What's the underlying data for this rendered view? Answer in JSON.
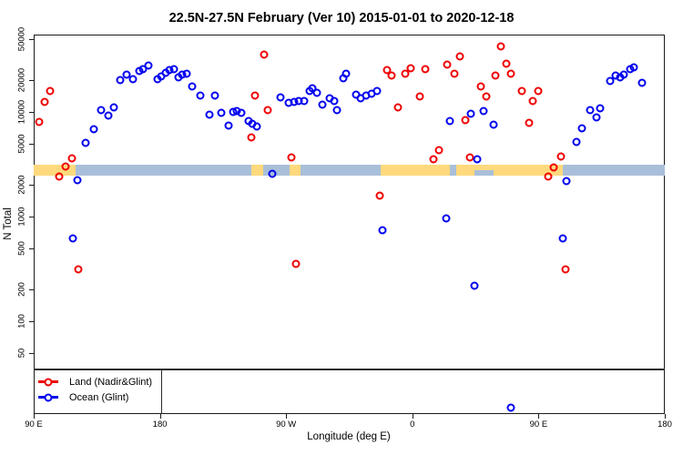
{
  "title": "22.5N-27.5N February (Ver 10)   2015-01-01 to 2020-12-18",
  "axes": {
    "x_label": "Longitude (deg E)",
    "y_label": "N Total",
    "x_range": [
      90,
      540
    ],
    "x_ticks": [
      {
        "value": 90,
        "label": "90 E"
      },
      {
        "value": 180,
        "label": "180"
      },
      {
        "value": 270,
        "label": "90 W"
      },
      {
        "value": 360,
        "label": "0"
      },
      {
        "value": 450,
        "label": "90 E"
      },
      {
        "value": 540,
        "label": "180"
      }
    ],
    "y_ticks": [
      50,
      100,
      200,
      500,
      1000,
      2000,
      5000,
      10000,
      20000,
      50000
    ],
    "y_scale": "log"
  },
  "legend": [
    {
      "label": "Land (Nadir&Glint)",
      "color": "#ee0000"
    },
    {
      "label": "Ocean (Glint)",
      "color": "#0000ee"
    }
  ],
  "map_band": {
    "ocean_color": "#a9bfd9",
    "land_color": "#ffd97c",
    "n_range": [
      2460,
      3100
    ],
    "land_segments_lon": [
      [
        90,
        120
      ],
      [
        245,
        253.5
      ],
      [
        272.5,
        280.5
      ],
      [
        337.5,
        386.5
      ],
      [
        391,
        467
      ]
    ],
    "ocean_patches_lower_lon": [
      [
        404,
        418
      ]
    ]
  },
  "threshold_line_n": 35,
  "chart_data": {
    "type": "scatter",
    "xlabel": "Longitude (deg E)",
    "ylabel": "N Total",
    "x_range": [
      90,
      540
    ],
    "y_range_log": [
      13,
      60000
    ],
    "grid": false,
    "legend_position": "bottom-left",
    "series": [
      {
        "name": "Land (Nadir&Glint)",
        "color": "#ee0000",
        "points": [
          [
            94,
            8000
          ],
          [
            98,
            12500
          ],
          [
            102,
            16000
          ],
          [
            108,
            2400
          ],
          [
            113,
            3000
          ],
          [
            117,
            3600
          ],
          [
            122,
            310
          ],
          [
            245,
            5700
          ],
          [
            248,
            14300
          ],
          [
            254,
            35000
          ],
          [
            257,
            10400
          ],
          [
            274,
            3700
          ],
          [
            277,
            355
          ],
          [
            337,
            1600
          ],
          [
            342,
            25000
          ],
          [
            345,
            22300
          ],
          [
            350,
            11000
          ],
          [
            355,
            23000
          ],
          [
            359,
            26000
          ],
          [
            365,
            14000
          ],
          [
            369,
            25500
          ],
          [
            375,
            3550
          ],
          [
            379,
            4340
          ],
          [
            385,
            28500
          ],
          [
            390,
            23000
          ],
          [
            394,
            34000
          ],
          [
            398,
            8300
          ],
          [
            401,
            3700
          ],
          [
            409,
            17400
          ],
          [
            413,
            14000
          ],
          [
            419,
            22400
          ],
          [
            423,
            42000
          ],
          [
            427,
            29000
          ],
          [
            430,
            23000
          ],
          [
            438,
            15700
          ],
          [
            443,
            7900
          ],
          [
            446,
            12800
          ],
          [
            450,
            15700
          ],
          [
            457,
            2430
          ],
          [
            461,
            2970
          ],
          [
            466,
            3740
          ],
          [
            469,
            310
          ]
        ]
      },
      {
        "name": "Ocean (Glint)",
        "color": "#0000ee",
        "points": [
          [
            118,
            615
          ],
          [
            121,
            2230
          ],
          [
            127,
            5100
          ],
          [
            133,
            6900
          ],
          [
            138,
            10350
          ],
          [
            143,
            9200
          ],
          [
            147,
            11000
          ],
          [
            152,
            20100
          ],
          [
            156,
            22900
          ],
          [
            161,
            20700
          ],
          [
            165,
            24600
          ],
          [
            168,
            25800
          ],
          [
            172,
            27600
          ],
          [
            178,
            20400
          ],
          [
            181,
            22000
          ],
          [
            184,
            23800
          ],
          [
            187,
            25000
          ],
          [
            190,
            25500
          ],
          [
            193,
            21500
          ],
          [
            196,
            22700
          ],
          [
            199,
            23300
          ],
          [
            203,
            17600
          ],
          [
            209,
            14400
          ],
          [
            215,
            9400
          ],
          [
            219,
            14400
          ],
          [
            224,
            9800
          ],
          [
            229,
            7400
          ],
          [
            232,
            10000
          ],
          [
            235,
            10200
          ],
          [
            238,
            9800
          ],
          [
            243,
            8200
          ],
          [
            246,
            7700
          ],
          [
            249,
            7300
          ],
          [
            260,
            2550
          ],
          [
            266,
            13800
          ],
          [
            272,
            12200
          ],
          [
            276,
            12400
          ],
          [
            279,
            12600
          ],
          [
            283,
            12800
          ],
          [
            287,
            16000
          ],
          [
            289,
            16700
          ],
          [
            292,
            15200
          ],
          [
            296,
            11700
          ],
          [
            301,
            13500
          ],
          [
            304,
            12600
          ],
          [
            306,
            10350
          ],
          [
            311,
            20850
          ],
          [
            313,
            23000
          ],
          [
            320,
            14600
          ],
          [
            323,
            13400
          ],
          [
            327,
            14400
          ],
          [
            331,
            14900
          ],
          [
            335,
            15700
          ],
          [
            339,
            740
          ],
          [
            384,
            966
          ],
          [
            387,
            8200
          ],
          [
            402,
            9600
          ],
          [
            404,
            220
          ],
          [
            406,
            3550
          ],
          [
            411,
            10200
          ],
          [
            418,
            7500
          ],
          [
            430,
            15
          ],
          [
            467,
            620
          ],
          [
            470,
            2200
          ],
          [
            477,
            5130
          ],
          [
            481,
            6930
          ],
          [
            487,
            10470
          ],
          [
            491,
            8910
          ],
          [
            494,
            10840
          ],
          [
            501,
            19900
          ],
          [
            505,
            22400
          ],
          [
            508,
            21400
          ],
          [
            511,
            22900
          ],
          [
            515,
            25500
          ],
          [
            518,
            26700
          ],
          [
            524,
            19100
          ]
        ]
      }
    ]
  }
}
